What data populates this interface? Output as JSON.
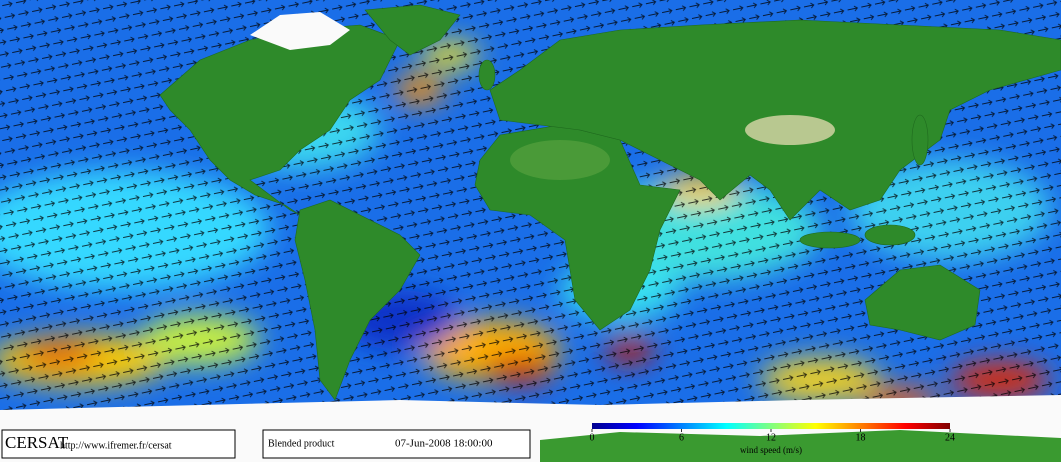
{
  "footer": {
    "logo": "CERSAT",
    "url": "http://www.ifremer.fr/cersat",
    "product": "Blended product",
    "date": "07-Jun-2008 18:00:00"
  },
  "colorbar": {
    "label": "wind speed (m/s)",
    "lim": [
      0,
      24
    ],
    "ticks": [
      0,
      6,
      12,
      18,
      24
    ],
    "colors": [
      "#00008f",
      "#0000ff",
      "#0080ff",
      "#00ffff",
      "#80ff80",
      "#ffff00",
      "#ff8000",
      "#ff0000",
      "#800000"
    ]
  }
}
